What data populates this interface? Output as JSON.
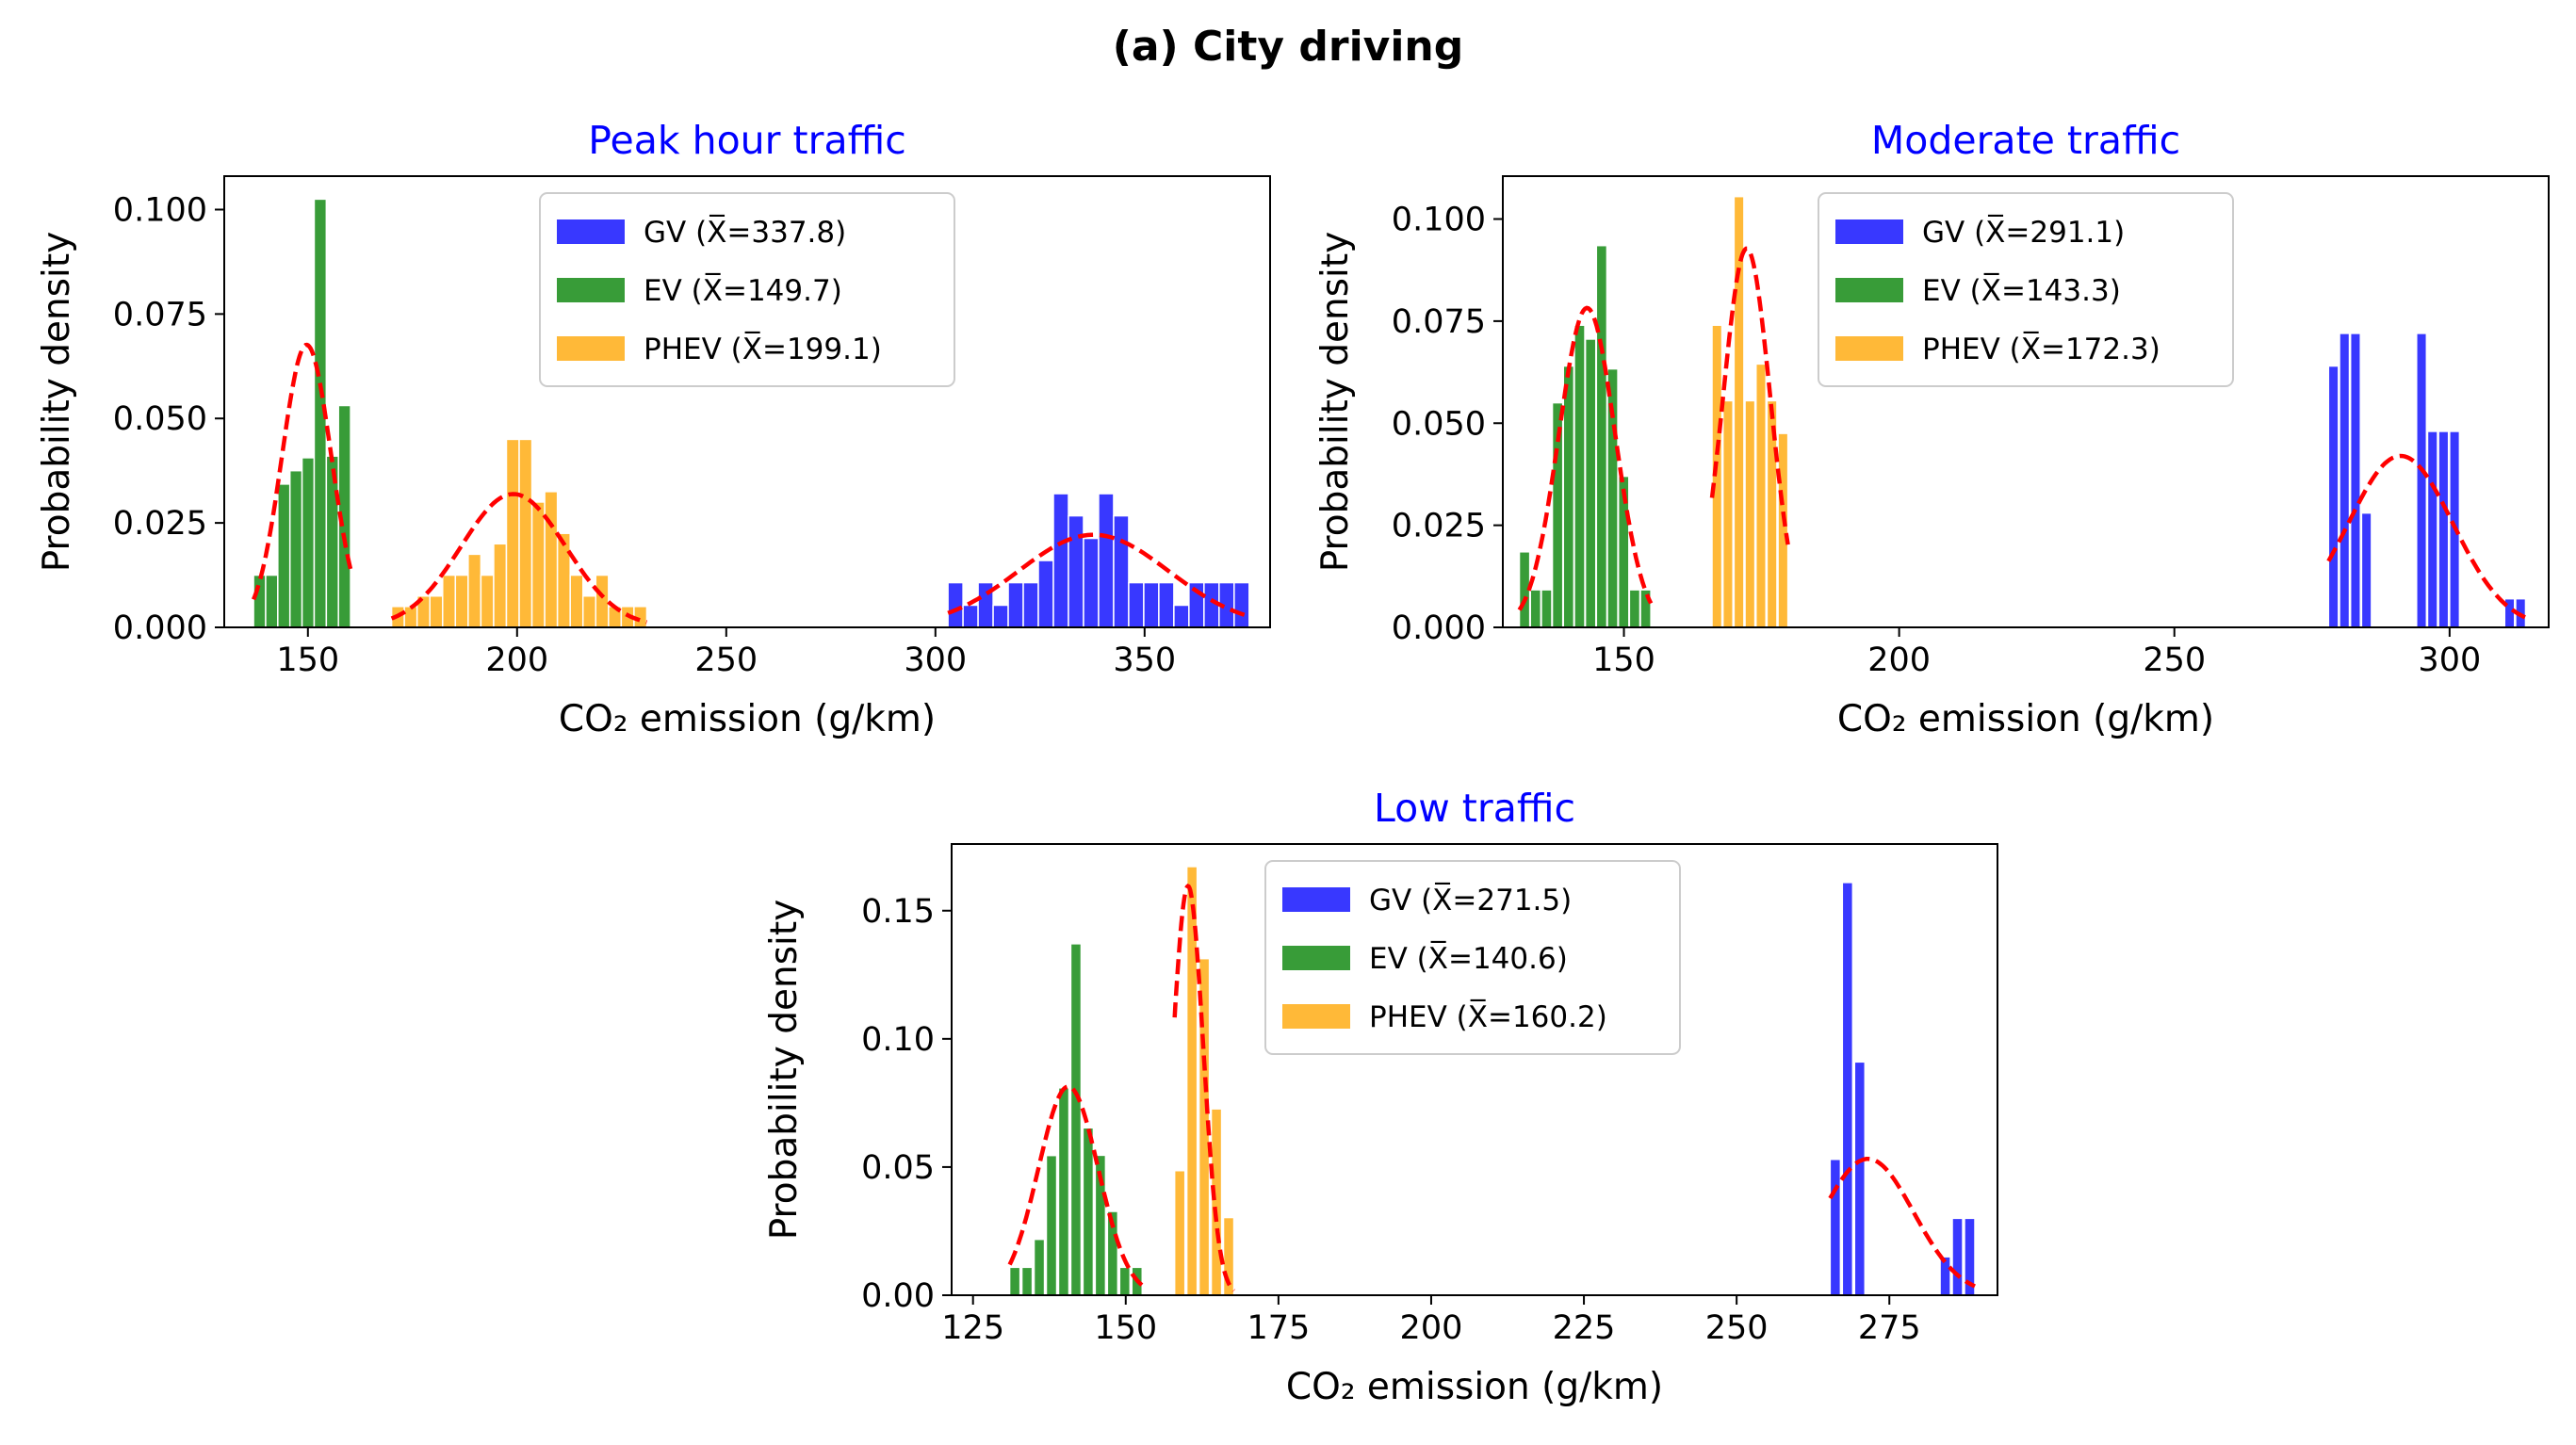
{
  "figure": {
    "title": "(a)  City driving"
  },
  "colors": {
    "GV": "#0000ff",
    "EV": "#008000",
    "PHEV": "#ffa500",
    "fit": "#ff0000",
    "subtitle": "#0000ff"
  },
  "chart_data": [
    {
      "type": "bar",
      "title": "Peak hour traffic",
      "xlabel": "CO₂ emission (g/km)",
      "ylabel": "Probability density",
      "xlim": [
        130,
        380
      ],
      "ylim": [
        0,
        0.108
      ],
      "xticks": [
        150,
        200,
        250,
        300,
        350
      ],
      "yticks": [
        0.0,
        0.025,
        0.05,
        0.075,
        0.1
      ],
      "ytick_labels": [
        "0.000",
        "0.025",
        "0.050",
        "0.075",
        "0.100"
      ],
      "legend_position": "top-center",
      "series": [
        {
          "name": "GV (X̅=337.8)",
          "key": "GV",
          "mean": 337.8,
          "sd": 18,
          "bin_width": 3.6,
          "bins": [
            [
              303,
              0.0107
            ],
            [
              306.6,
              0.0053
            ],
            [
              310.2,
              0.0107
            ],
            [
              313.8,
              0.0053
            ],
            [
              317.4,
              0.0107
            ],
            [
              321,
              0.0107
            ],
            [
              324.6,
              0.016
            ],
            [
              328.2,
              0.032
            ],
            [
              331.8,
              0.0267
            ],
            [
              335.4,
              0.0213
            ],
            [
              339,
              0.032
            ],
            [
              342.6,
              0.0267
            ],
            [
              346.2,
              0.0107
            ],
            [
              349.8,
              0.0107
            ],
            [
              353.4,
              0.0107
            ],
            [
              357,
              0.0053
            ],
            [
              360.6,
              0.0107
            ],
            [
              364.2,
              0.0107
            ],
            [
              367.8,
              0.0107
            ],
            [
              371.4,
              0.0107
            ]
          ]
        },
        {
          "name": "EV (X̅=149.7)",
          "key": "EV",
          "mean": 149.7,
          "sd": 5.9,
          "bin_width": 2.9,
          "bins": [
            [
              137,
              0.0125
            ],
            [
              139.9,
              0.0125
            ],
            [
              142.8,
              0.0343
            ],
            [
              145.7,
              0.0375
            ],
            [
              148.6,
              0.0406
            ],
            [
              151.5,
              0.1025
            ],
            [
              154.4,
              0.041
            ],
            [
              157.3,
              0.0531
            ]
          ]
        },
        {
          "name": "PHEV (X̅=199.1)",
          "key": "PHEV",
          "mean": 199.1,
          "sd": 12.5,
          "bin_width": 3.05,
          "bins": [
            [
              170,
              0.005
            ],
            [
              173.05,
              0.005
            ],
            [
              176.1,
              0.0075
            ],
            [
              179.15,
              0.0075
            ],
            [
              182.2,
              0.0125
            ],
            [
              185.25,
              0.0125
            ],
            [
              188.3,
              0.0175
            ],
            [
              191.35,
              0.0125
            ],
            [
              194.4,
              0.02
            ],
            [
              197.45,
              0.045
            ],
            [
              200.5,
              0.045
            ],
            [
              203.55,
              0.03
            ],
            [
              206.6,
              0.0325
            ],
            [
              209.65,
              0.0225
            ],
            [
              212.7,
              0.0125
            ],
            [
              215.75,
              0.0075
            ],
            [
              218.8,
              0.0125
            ],
            [
              221.85,
              0.005
            ],
            [
              224.9,
              0.005
            ],
            [
              227.95,
              0.005
            ]
          ]
        }
      ]
    },
    {
      "type": "bar",
      "title": "Moderate traffic",
      "xlabel": "CO₂ emission (g/km)",
      "ylabel": "Probability density",
      "xlim": [
        128,
        318
      ],
      "ylim": [
        0,
        0.1105
      ],
      "xticks": [
        150,
        200,
        250,
        300
      ],
      "yticks": [
        0.0,
        0.025,
        0.05,
        0.075,
        0.1
      ],
      "ytick_labels": [
        "0.000",
        "0.025",
        "0.050",
        "0.075",
        "0.100"
      ],
      "legend_position": "top-center",
      "series": [
        {
          "name": "GV (X̅=291.1)",
          "key": "GV",
          "mean": 291.1,
          "sd": 9.5,
          "bin_width": 1.8,
          "bins": [
            [
              278,
              0.064
            ],
            [
              280,
              0.072
            ],
            [
              282,
              0.072
            ],
            [
              284,
              0.028
            ],
            [
              288,
              0
            ],
            [
              292,
              0
            ],
            [
              294,
              0.072
            ],
            [
              296,
              0.048
            ],
            [
              298,
              0.048
            ],
            [
              300,
              0.048
            ],
            [
              310,
              0.007
            ],
            [
              312,
              0.007
            ]
          ]
        },
        {
          "name": "EV (X̅=143.3)",
          "key": "EV",
          "mean": 143.3,
          "sd": 5.1,
          "bin_width": 1.9,
          "bins": [
            [
              131,
              0.0185
            ],
            [
              133,
              0.0092
            ],
            [
              135,
              0.0092
            ],
            [
              137,
              0.055
            ],
            [
              139,
              0.064
            ],
            [
              141,
              0.074
            ],
            [
              143,
              0.0706
            ],
            [
              145,
              0.0935
            ],
            [
              147,
              0.0633
            ],
            [
              149,
              0.037
            ],
            [
              151,
              0.0092
            ],
            [
              153,
              0.0092
            ],
            [
              155,
              0
            ]
          ]
        },
        {
          "name": "PHEV (X̅=172.3)",
          "key": "PHEV",
          "mean": 172.3,
          "sd": 4.3,
          "bin_width": 1.8,
          "bins": [
            [
              166,
              0.074
            ],
            [
              168,
              0.0555
            ],
            [
              170,
              0.1055
            ],
            [
              172,
              0.0555
            ],
            [
              174,
              0.0645
            ],
            [
              176,
              0.0555
            ],
            [
              178,
              0.0475
            ]
          ]
        }
      ]
    },
    {
      "type": "bar",
      "title": "Low traffic",
      "xlabel": "CO₂ emission (g/km)",
      "ylabel": "Probability density",
      "xlim": [
        121.5,
        292.7
      ],
      "ylim": [
        0,
        0.176
      ],
      "xticks": [
        125,
        150,
        175,
        200,
        225,
        250,
        275
      ],
      "yticks": [
        0.0,
        0.05,
        0.1,
        0.15
      ],
      "ytick_labels": [
        "0.00",
        "0.05",
        "0.10",
        "0.15"
      ],
      "legend_position": "top-center",
      "series": [
        {
          "name": "GV (X̅=271.5)",
          "key": "GV",
          "mean": 271.5,
          "sd": 7.5,
          "bin_width": 1.7,
          "bins": [
            [
              265.3,
              0.053
            ],
            [
              267.3,
              0.161
            ],
            [
              269.3,
              0.091
            ],
            [
              283.3,
              0.015
            ],
            [
              285.3,
              0.03
            ],
            [
              287.3,
              0.03
            ]
          ]
        },
        {
          "name": "EV (X̅=140.6)",
          "key": "EV",
          "mean": 140.6,
          "sd": 4.9,
          "bin_width": 1.7,
          "bins": [
            [
              131,
              0.0109
            ],
            [
              133,
              0.0109
            ],
            [
              135,
              0.0218
            ],
            [
              137,
              0.0545
            ],
            [
              139,
              0.0809
            ],
            [
              141,
              0.1371
            ],
            [
              143,
              0.0653
            ],
            [
              145,
              0.0546
            ],
            [
              147,
              0.0327
            ],
            [
              149,
              0.0109
            ],
            [
              151,
              0.0109
            ]
          ]
        },
        {
          "name": "PHEV (X̅=160.2)",
          "key": "PHEV",
          "mean": 160.2,
          "sd": 2.5,
          "bin_width": 1.7,
          "bins": [
            [
              158,
              0.0486
            ],
            [
              160,
              0.1672
            ],
            [
              162,
              0.1313
            ],
            [
              164,
              0.0727
            ],
            [
              166,
              0.0303
            ]
          ]
        }
      ]
    }
  ]
}
